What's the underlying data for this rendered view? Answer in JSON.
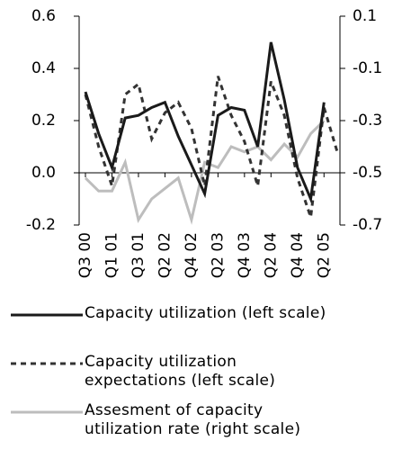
{
  "chart_data": {
    "type": "line",
    "categories": [
      "Q3 00",
      null,
      "Q1 01",
      null,
      "Q3 01",
      null,
      "Q2 02",
      null,
      "Q4 02",
      null,
      "Q2 03",
      null,
      "Q4 03",
      null,
      "Q2 04",
      null,
      "Q4 04",
      null,
      "Q2 05",
      null
    ],
    "series": [
      {
        "name": "Capacity utilization (left scale)",
        "color": "#1a1a1a",
        "dash": "none",
        "values": [
          0.31,
          0.15,
          0.02,
          0.21,
          0.22,
          0.25,
          0.27,
          0.14,
          0.03,
          -0.08,
          0.22,
          0.25,
          0.24,
          0.1,
          0.5,
          0.28,
          0.02,
          -0.1,
          0.27,
          null
        ]
      },
      {
        "name": "Capacity utilization expectations (left scale)",
        "color": "#333333",
        "dash": "6,5",
        "values": [
          0.3,
          0.1,
          -0.05,
          0.3,
          0.34,
          0.13,
          0.23,
          0.27,
          0.17,
          -0.05,
          0.37,
          0.22,
          0.12,
          -0.05,
          0.35,
          0.22,
          -0.02,
          -0.17,
          0.25,
          0.08
        ]
      },
      {
        "name": "Assesment of capacity utilization rate (right scale)",
        "color": "#bdbdbd",
        "dash": "none",
        "axis": "y2",
        "values": [
          -0.52,
          -0.57,
          -0.57,
          -0.46,
          -0.68,
          -0.6,
          -0.56,
          -0.52,
          -0.68,
          -0.46,
          -0.48,
          -0.4,
          -0.42,
          -0.4,
          -0.45,
          -0.39,
          -0.44,
          -0.35,
          -0.3,
          null
        ]
      }
    ],
    "ylim": [
      -0.2,
      0.6
    ],
    "yticks": [
      {
        "value": -0.2,
        "label": "-0.2"
      },
      {
        "value": 0,
        "label": "0.0"
      },
      {
        "value": 0.2,
        "label": "0.2"
      },
      {
        "value": 0.4,
        "label": "0.4"
      },
      {
        "value": 0.6,
        "label": "0.6"
      }
    ],
    "y2lim": [
      -0.7,
      0.1
    ],
    "y2ticks": [
      {
        "value": -0.7,
        "label": "-0.7"
      },
      {
        "value": -0.5,
        "label": "-0.5"
      },
      {
        "value": -0.3,
        "label": "-0.3"
      },
      {
        "value": -0.1,
        "label": "-0.1"
      },
      0.1
    ],
    "grid": false
  }
}
